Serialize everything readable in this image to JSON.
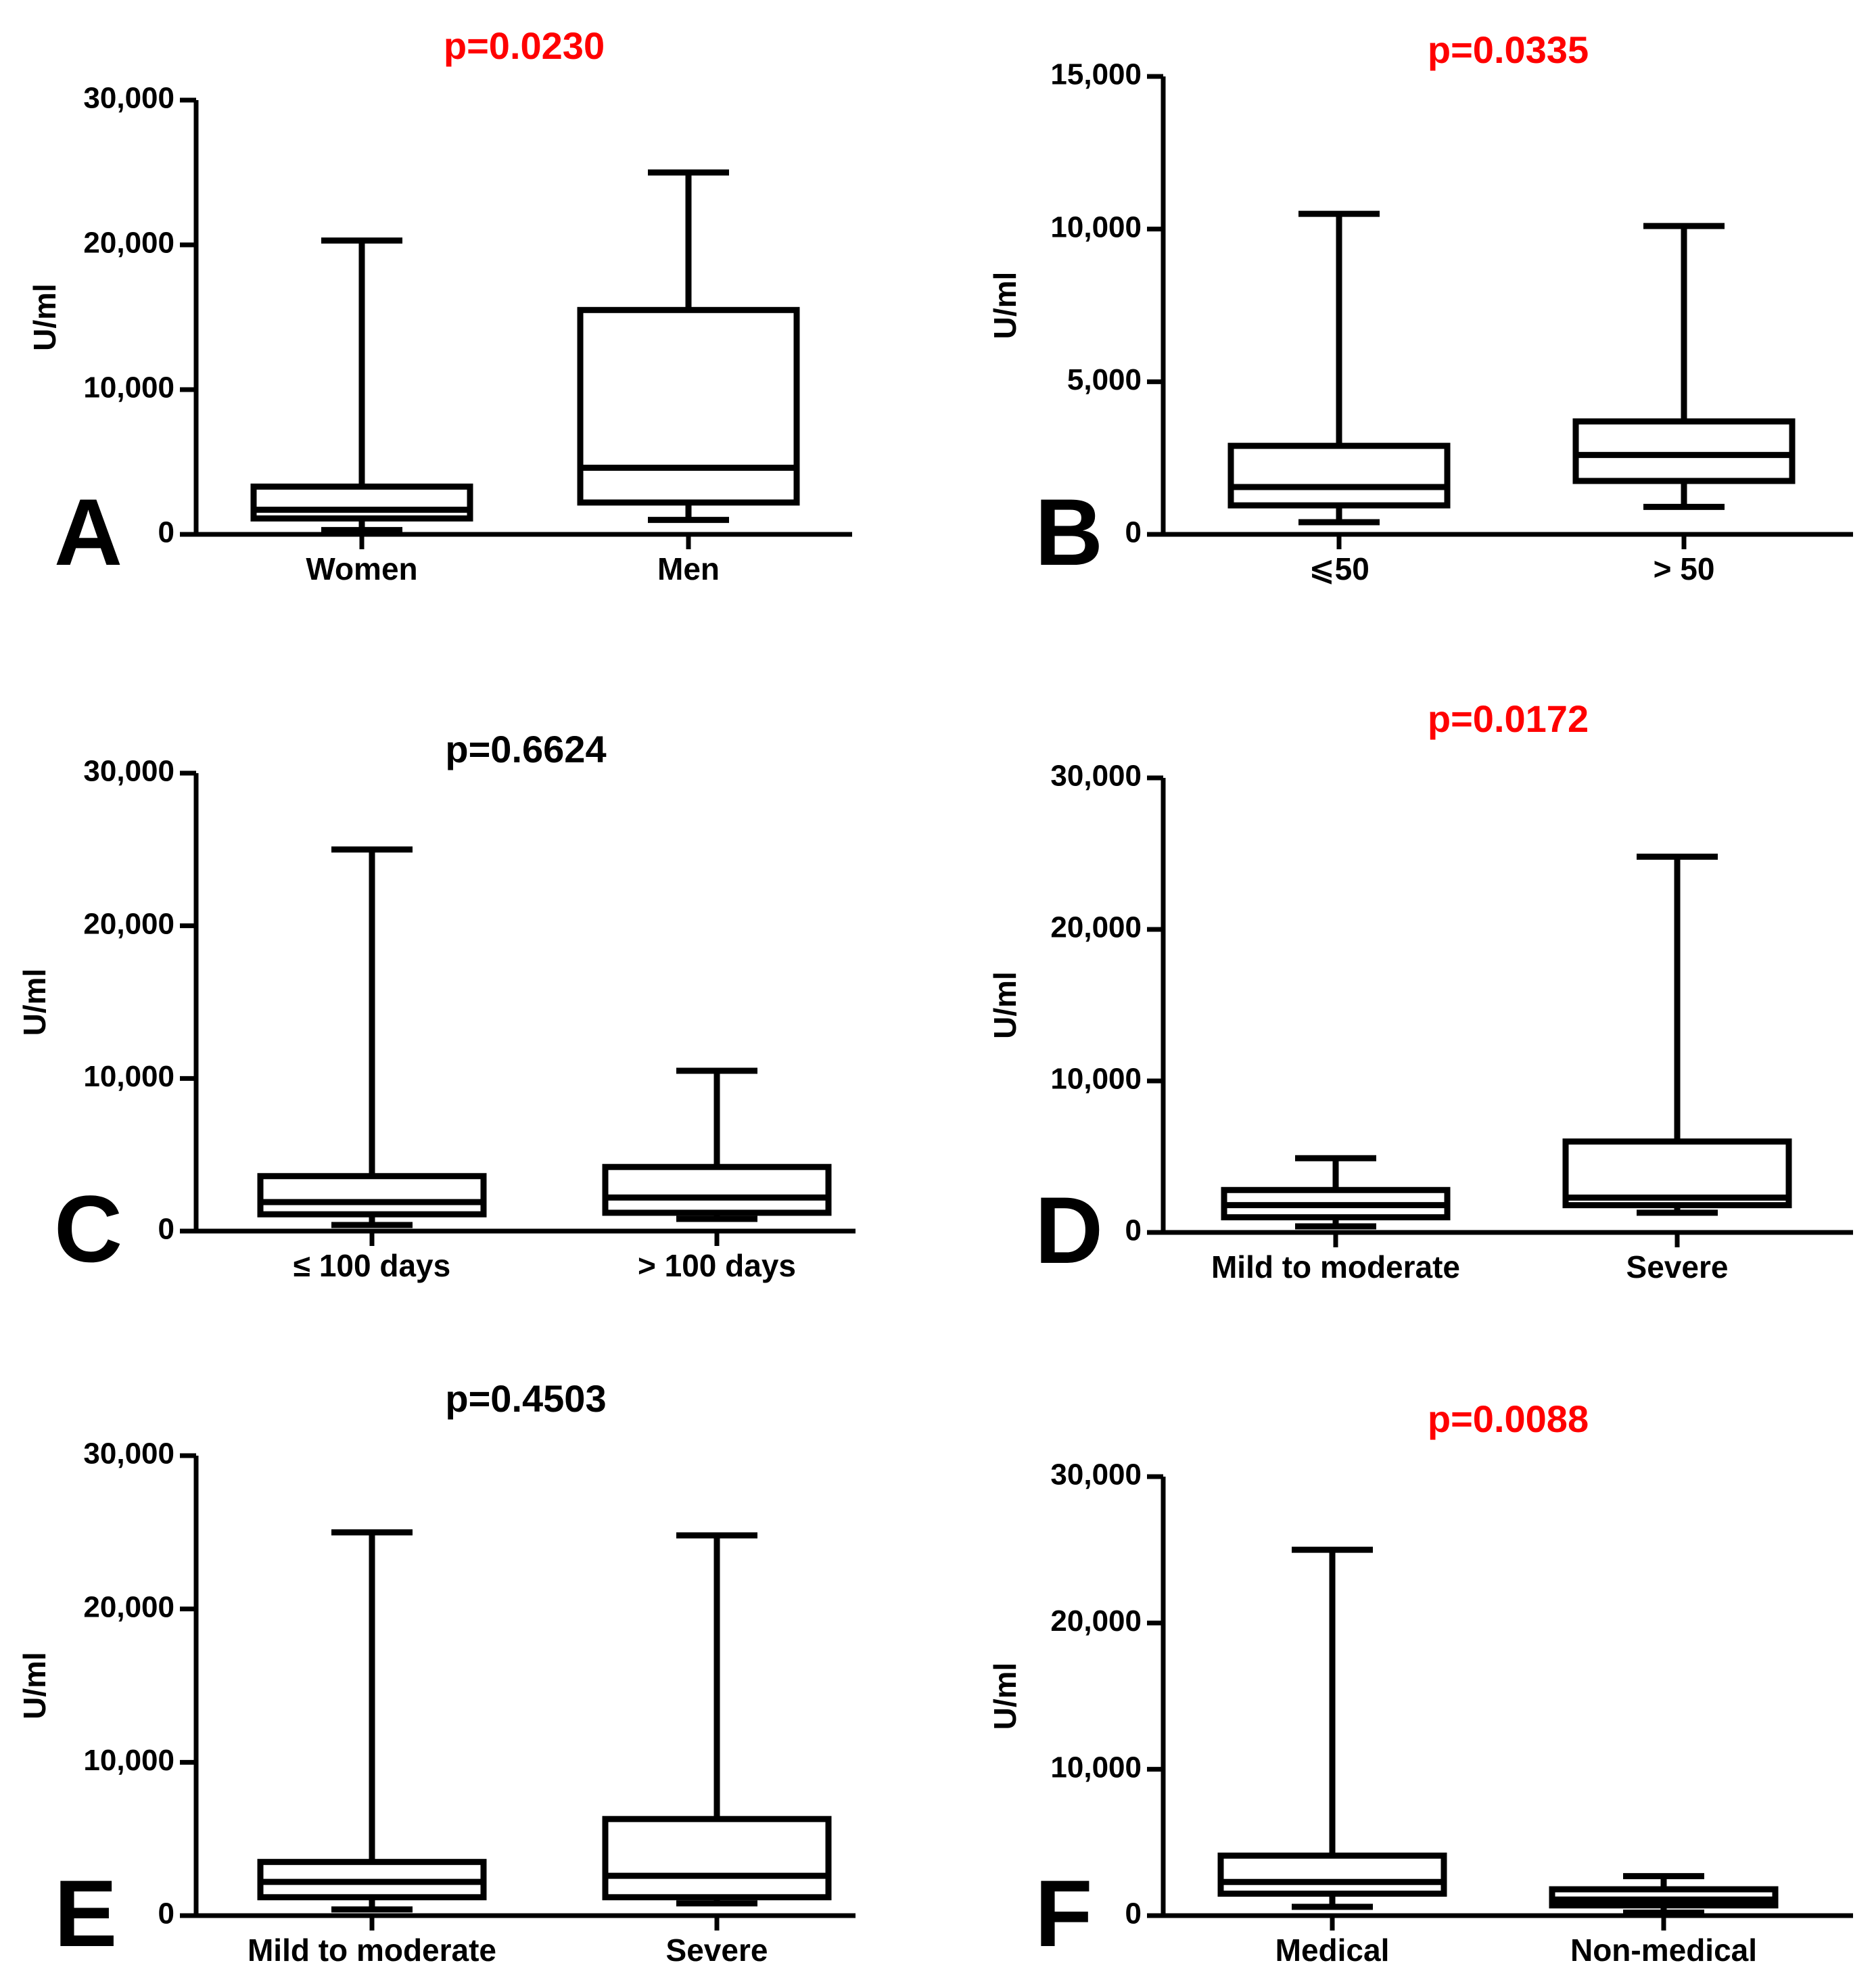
{
  "colors": {
    "significant": "#ff0000",
    "not_significant": "#000000",
    "ink": "#000000"
  },
  "chart_data": [
    {
      "type": "box",
      "panel": "A",
      "title": "p=0.0230",
      "significant": true,
      "ylabel": "U/ml",
      "ylim": [
        0,
        30000
      ],
      "yticks": [
        0,
        10000,
        20000,
        30000
      ],
      "ytick_labels": [
        "0",
        "10,000",
        "20,000",
        "30,000"
      ],
      "categories": [
        "Women",
        "Men"
      ],
      "boxes": [
        {
          "min": 300,
          "q1": 1100,
          "median": 1700,
          "q3": 3300,
          "max": 20300
        },
        {
          "min": 1000,
          "q1": 2200,
          "median": 4600,
          "q3": 15500,
          "max": 25000
        }
      ]
    },
    {
      "type": "box",
      "panel": "B",
      "title": "p=0.0335",
      "significant": true,
      "ylabel": "U/ml",
      "ylim": [
        0,
        15000
      ],
      "yticks": [
        0,
        5000,
        10000,
        15000
      ],
      "ytick_labels": [
        "0",
        "5,000",
        "10,000",
        "15,000"
      ],
      "categories": [
        "⩽50",
        "> 50"
      ],
      "boxes": [
        {
          "min": 400,
          "q1": 950,
          "median": 1550,
          "q3": 2900,
          "max": 10500
        },
        {
          "min": 900,
          "q1": 1750,
          "median": 2600,
          "q3": 3700,
          "max": 10100
        }
      ]
    },
    {
      "type": "box",
      "panel": "C",
      "title": "p=0.6624",
      "significant": false,
      "ylabel": "U/ml",
      "ylim": [
        0,
        30000
      ],
      "yticks": [
        0,
        10000,
        20000,
        30000
      ],
      "ytick_labels": [
        "0",
        "10,000",
        "20,000",
        "30,000"
      ],
      "categories": [
        "≤ 100 days",
        "> 100 days"
      ],
      "boxes": [
        {
          "min": 400,
          "q1": 1100,
          "median": 1900,
          "q3": 3600,
          "max": 25000
        },
        {
          "min": 800,
          "q1": 1200,
          "median": 2200,
          "q3": 4200,
          "max": 10500
        }
      ]
    },
    {
      "type": "box",
      "panel": "D",
      "title": "p=0.0172",
      "significant": true,
      "ylabel": "U/ml",
      "ylim": [
        0,
        30000
      ],
      "yticks": [
        0,
        10000,
        20000,
        30000
      ],
      "ytick_labels": [
        "0",
        "10,000",
        "20,000",
        "30,000"
      ],
      "categories": [
        "Mild to moderate",
        "Severe"
      ],
      "boxes": [
        {
          "min": 400,
          "q1": 1000,
          "median": 1800,
          "q3": 2800,
          "max": 4900
        },
        {
          "min": 1300,
          "q1": 1800,
          "median": 2300,
          "q3": 6000,
          "max": 24800
        }
      ]
    },
    {
      "type": "box",
      "panel": "E",
      "title": "p=0.4503",
      "significant": false,
      "ylabel": "U/ml",
      "ylim": [
        0,
        30000
      ],
      "yticks": [
        0,
        10000,
        20000,
        30000
      ],
      "ytick_labels": [
        "0",
        "10,000",
        "20,000",
        "30,000"
      ],
      "categories": [
        "Mild to moderate",
        "Severe"
      ],
      "boxes": [
        {
          "min": 400,
          "q1": 1200,
          "median": 2200,
          "q3": 3500,
          "max": 25000
        },
        {
          "min": 800,
          "q1": 1200,
          "median": 2600,
          "q3": 6300,
          "max": 24800
        }
      ]
    },
    {
      "type": "box",
      "panel": "F",
      "title": "p=0.0088",
      "significant": true,
      "ylabel": "U/ml",
      "ylim": [
        0,
        30000
      ],
      "yticks": [
        0,
        10000,
        20000,
        30000
      ],
      "ytick_labels": [
        "0",
        "10,000",
        "20,000",
        "30,000"
      ],
      "categories": [
        "Medical",
        "Non-medical"
      ],
      "boxes": [
        {
          "min": 600,
          "q1": 1500,
          "median": 2300,
          "q3": 4100,
          "max": 25000
        },
        {
          "min": 200,
          "q1": 700,
          "median": 1100,
          "q3": 1800,
          "max": 2700
        }
      ]
    }
  ]
}
